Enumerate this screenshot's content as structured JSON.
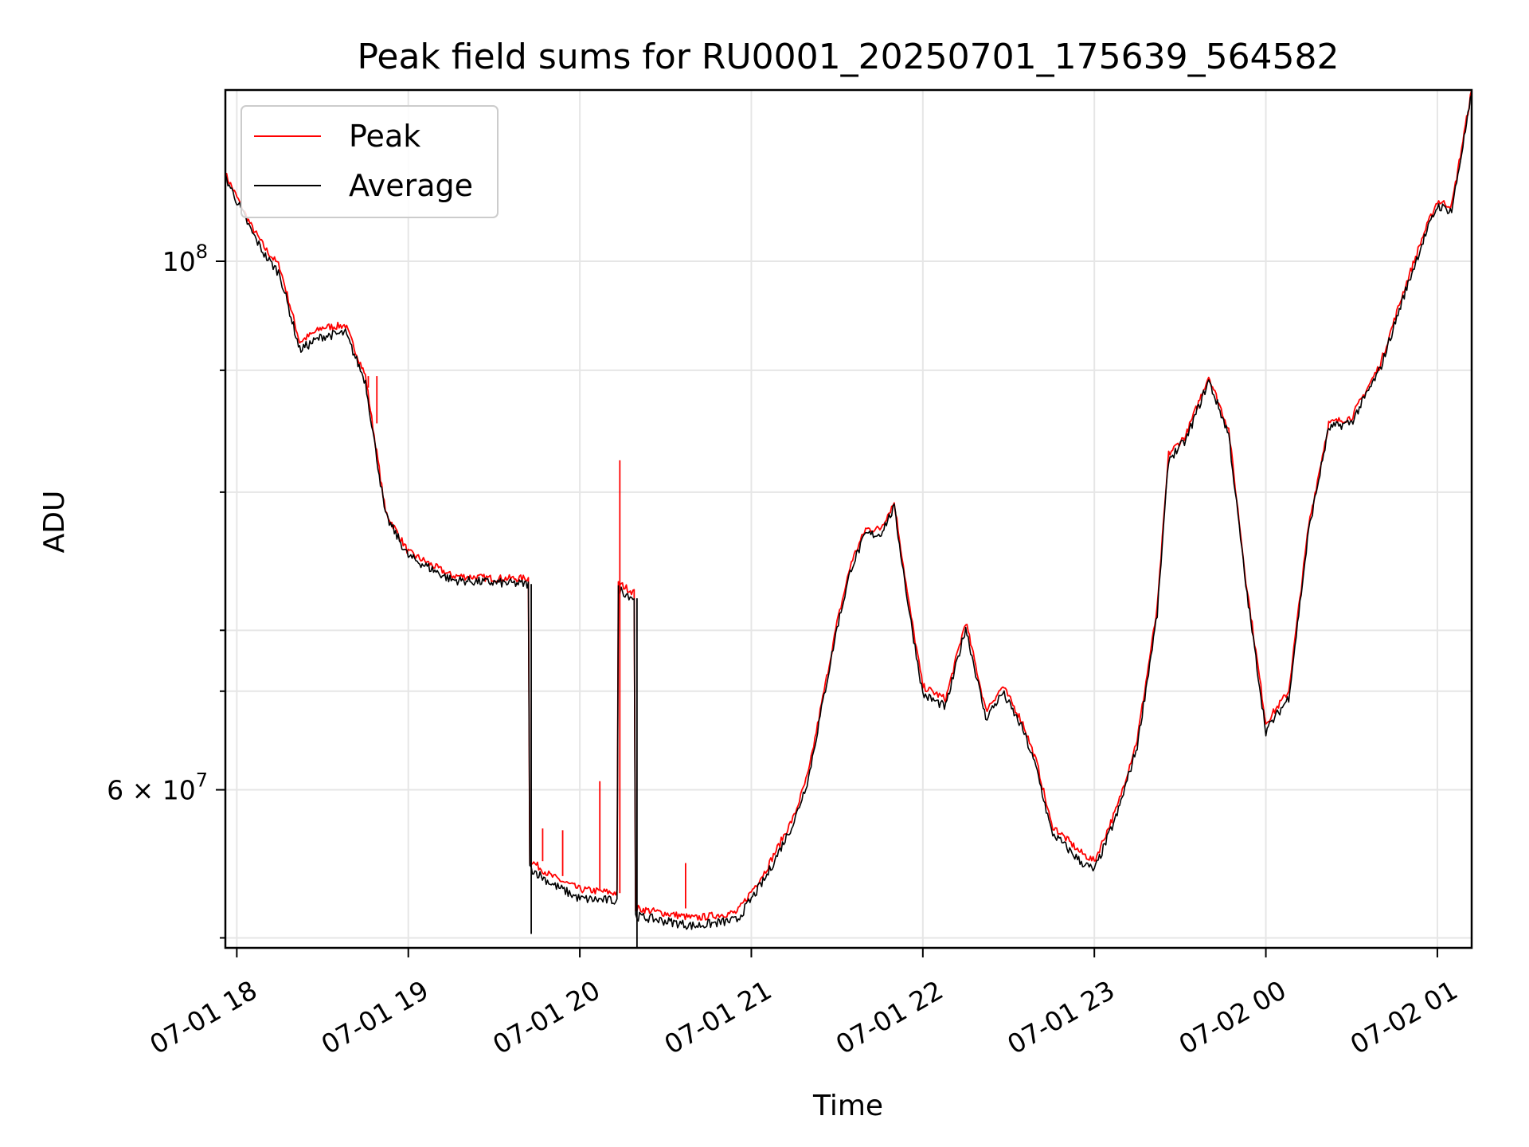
{
  "chart_data": {
    "type": "line",
    "title": "Peak field sums for RU0001_20250701_175639_564582",
    "xlabel": "Time",
    "ylabel": "ADU",
    "yscale": "log",
    "grid": true,
    "legend_position": "top-left",
    "xlim": [
      "2025-07-01 17:56",
      "2025-07-02 01:12"
    ],
    "ylim": [
      51500000,
      118000000
    ],
    "x_ticks": [
      {
        "value": "2025-07-01 18:00",
        "label": "07-01 18"
      },
      {
        "value": "2025-07-01 19:00",
        "label": "07-01 19"
      },
      {
        "value": "2025-07-01 20:00",
        "label": "07-01 20"
      },
      {
        "value": "2025-07-01 21:00",
        "label": "07-01 21"
      },
      {
        "value": "2025-07-01 22:00",
        "label": "07-01 22"
      },
      {
        "value": "2025-07-01 23:00",
        "label": "07-01 23"
      },
      {
        "value": "2025-07-02 00:00",
        "label": "07-02 00"
      },
      {
        "value": "2025-07-02 01:00",
        "label": "07-02 01"
      }
    ],
    "y_major_ticks": [
      {
        "value": 60000000,
        "base": "6 × 10",
        "exp": "7"
      },
      {
        "value": 100000000,
        "base": "10",
        "exp": "8"
      }
    ],
    "y_minor_ticks": [
      52000000,
      66000000,
      70000000,
      80000000,
      90000000
    ],
    "series": [
      {
        "name": "Peak",
        "color": "#ff0000",
        "points": [
          [
            "2025-07-01 17:56",
            108800000
          ],
          [
            "2025-07-01 18:05",
            103500000
          ],
          [
            "2025-07-01 18:10",
            101200000
          ],
          [
            "2025-07-01 18:15",
            99500000
          ],
          [
            "2025-07-01 18:22",
            92500000
          ],
          [
            "2025-07-01 18:30",
            93800000
          ],
          [
            "2025-07-01 18:38",
            94000000
          ],
          [
            "2025-07-01 18:45",
            89500000
          ],
          [
            "2025-07-01 18:52",
            78500000
          ],
          [
            "2025-07-01 19:00",
            75500000
          ],
          [
            "2025-07-01 19:15",
            73800000
          ],
          [
            "2025-07-01 19:30",
            73600000
          ],
          [
            "2025-07-01 19:42",
            73600000
          ],
          [
            "2025-07-01 19:43",
            56000000
          ],
          [
            "2025-07-01 19:50",
            55200000
          ],
          [
            "2025-07-01 20:00",
            54500000
          ],
          [
            "2025-07-01 20:13",
            54300000
          ],
          [
            "2025-07-01 20:14",
            73200000
          ],
          [
            "2025-07-01 20:19",
            72600000
          ],
          [
            "2025-07-01 20:20",
            53500000
          ],
          [
            "2025-07-01 20:40",
            53000000
          ],
          [
            "2025-07-01 20:55",
            53300000
          ],
          [
            "2025-07-01 21:05",
            55500000
          ],
          [
            "2025-07-01 21:15",
            58500000
          ],
          [
            "2025-07-01 21:20",
            61000000
          ],
          [
            "2025-07-01 21:30",
            70500000
          ],
          [
            "2025-07-01 21:35",
            74800000
          ],
          [
            "2025-07-01 21:40",
            77200000
          ],
          [
            "2025-07-01 21:45",
            77200000
          ],
          [
            "2025-07-01 21:50",
            79200000
          ],
          [
            "2025-07-01 21:55",
            72000000
          ],
          [
            "2025-07-01 22:00",
            66300000
          ],
          [
            "2025-07-01 22:08",
            65500000
          ],
          [
            "2025-07-01 22:15",
            70600000
          ],
          [
            "2025-07-01 22:22",
            64800000
          ],
          [
            "2025-07-01 22:28",
            66300000
          ],
          [
            "2025-07-01 22:35",
            64000000
          ],
          [
            "2025-07-01 22:40",
            61500000
          ],
          [
            "2025-07-01 22:45",
            58000000
          ],
          [
            "2025-07-01 22:55",
            56500000
          ],
          [
            "2025-07-01 23:00",
            56000000
          ],
          [
            "2025-07-01 23:08",
            59000000
          ],
          [
            "2025-07-01 23:15",
            63000000
          ],
          [
            "2025-07-01 23:22",
            71500000
          ],
          [
            "2025-07-01 23:26",
            83000000
          ],
          [
            "2025-07-01 23:32",
            84500000
          ],
          [
            "2025-07-01 23:40",
            89500000
          ],
          [
            "2025-07-01 23:47",
            85000000
          ],
          [
            "2025-07-01 23:53",
            73500000
          ],
          [
            "2025-07-02 00:00",
            64000000
          ],
          [
            "2025-07-02 00:08",
            66000000
          ],
          [
            "2025-07-02 00:15",
            77500000
          ],
          [
            "2025-07-02 00:22",
            85500000
          ],
          [
            "2025-07-02 00:30",
            86000000
          ],
          [
            "2025-07-02 00:40",
            90500000
          ],
          [
            "2025-07-02 00:48",
            97000000
          ],
          [
            "2025-07-02 00:55",
            102500000
          ],
          [
            "2025-07-02 01:00",
            106000000
          ],
          [
            "2025-07-02 01:05",
            105500000
          ],
          [
            "2025-07-02 01:12",
            118000000
          ]
        ]
      },
      {
        "name": "Average",
        "color": "#000000",
        "points": [
          [
            "2025-07-01 17:56",
            108500000
          ],
          [
            "2025-07-01 18:05",
            103000000
          ],
          [
            "2025-07-01 18:10",
            100500000
          ],
          [
            "2025-07-01 18:15",
            98800000
          ],
          [
            "2025-07-01 18:22",
            91800000
          ],
          [
            "2025-07-01 18:30",
            93000000
          ],
          [
            "2025-07-01 18:38",
            93300000
          ],
          [
            "2025-07-01 18:45",
            89000000
          ],
          [
            "2025-07-01 18:52",
            78200000
          ],
          [
            "2025-07-01 19:00",
            75200000
          ],
          [
            "2025-07-01 19:15",
            73500000
          ],
          [
            "2025-07-01 19:30",
            73300000
          ],
          [
            "2025-07-01 19:42",
            73200000
          ],
          [
            "2025-07-01 19:43",
            55600000
          ],
          [
            "2025-07-01 19:50",
            54800000
          ],
          [
            "2025-07-01 20:00",
            54000000
          ],
          [
            "2025-07-01 20:13",
            53900000
          ],
          [
            "2025-07-01 20:14",
            72800000
          ],
          [
            "2025-07-01 20:19",
            72200000
          ],
          [
            "2025-07-01 20:20",
            53100000
          ],
          [
            "2025-07-01 20:40",
            52600000
          ],
          [
            "2025-07-01 20:55",
            52900000
          ],
          [
            "2025-07-01 21:05",
            55100000
          ],
          [
            "2025-07-01 21:15",
            58200000
          ],
          [
            "2025-07-01 21:20",
            60700000
          ],
          [
            "2025-07-01 21:30",
            70200000
          ],
          [
            "2025-07-01 21:35",
            74400000
          ],
          [
            "2025-07-01 21:40",
            76800000
          ],
          [
            "2025-07-01 21:45",
            76800000
          ],
          [
            "2025-07-01 21:50",
            78800000
          ],
          [
            "2025-07-01 21:55",
            71600000
          ],
          [
            "2025-07-01 22:00",
            65800000
          ],
          [
            "2025-07-01 22:08",
            65000000
          ],
          [
            "2025-07-01 22:15",
            70200000
          ],
          [
            "2025-07-01 22:22",
            64300000
          ],
          [
            "2025-07-01 22:28",
            65900000
          ],
          [
            "2025-07-01 22:35",
            63600000
          ],
          [
            "2025-07-01 22:40",
            61100000
          ],
          [
            "2025-07-01 22:45",
            57600000
          ],
          [
            "2025-07-01 22:55",
            56000000
          ],
          [
            "2025-07-01 23:00",
            55500000
          ],
          [
            "2025-07-01 23:08",
            58600000
          ],
          [
            "2025-07-01 23:15",
            62600000
          ],
          [
            "2025-07-01 23:22",
            71100000
          ],
          [
            "2025-07-01 23:26",
            82600000
          ],
          [
            "2025-07-01 23:32",
            84100000
          ],
          [
            "2025-07-01 23:40",
            89100000
          ],
          [
            "2025-07-01 23:47",
            84600000
          ],
          [
            "2025-07-01 23:53",
            73100000
          ],
          [
            "2025-07-02 00:00",
            63500000
          ],
          [
            "2025-07-02 00:08",
            65600000
          ],
          [
            "2025-07-02 00:15",
            77100000
          ],
          [
            "2025-07-02 00:22",
            85100000
          ],
          [
            "2025-07-02 00:30",
            85600000
          ],
          [
            "2025-07-02 00:40",
            90100000
          ],
          [
            "2025-07-02 00:48",
            96500000
          ],
          [
            "2025-07-02 00:55",
            102000000
          ],
          [
            "2025-07-02 01:00",
            105500000
          ],
          [
            "2025-07-02 01:05",
            105000000
          ],
          [
            "2025-07-02 01:12",
            117500000
          ]
        ]
      }
    ],
    "annotations": [
      {
        "series": "Peak",
        "x": "2025-07-01 20:14",
        "y": 82500000,
        "kind": "spike"
      },
      {
        "series": "Peak",
        "x": "2025-07-01 20:07",
        "y": 60500000,
        "kind": "spike"
      },
      {
        "series": "Peak",
        "x": "2025-07-01 19:47",
        "y": 57800000,
        "kind": "spike"
      },
      {
        "series": "Peak",
        "x": "2025-07-01 19:54",
        "y": 57700000,
        "kind": "spike"
      },
      {
        "series": "Peak",
        "x": "2025-07-01 20:37",
        "y": 55900000,
        "kind": "spike"
      },
      {
        "series": "Peak",
        "x": "2025-07-01 18:49",
        "y": 85500000,
        "kind": "spike"
      },
      {
        "series": "Peak",
        "x": "2025-07-01 18:46",
        "y": 88500000,
        "kind": "spike"
      },
      {
        "series": "Peak",
        "x": "2025-07-01 19:10",
        "y": 75500000,
        "kind": "spike"
      },
      {
        "series": "Average",
        "x": "2025-07-01 20:20",
        "y": 51500000,
        "kind": "dip"
      },
      {
        "series": "Average",
        "x": "2025-07-01 19:43",
        "y": 52200000,
        "kind": "dip"
      }
    ]
  }
}
